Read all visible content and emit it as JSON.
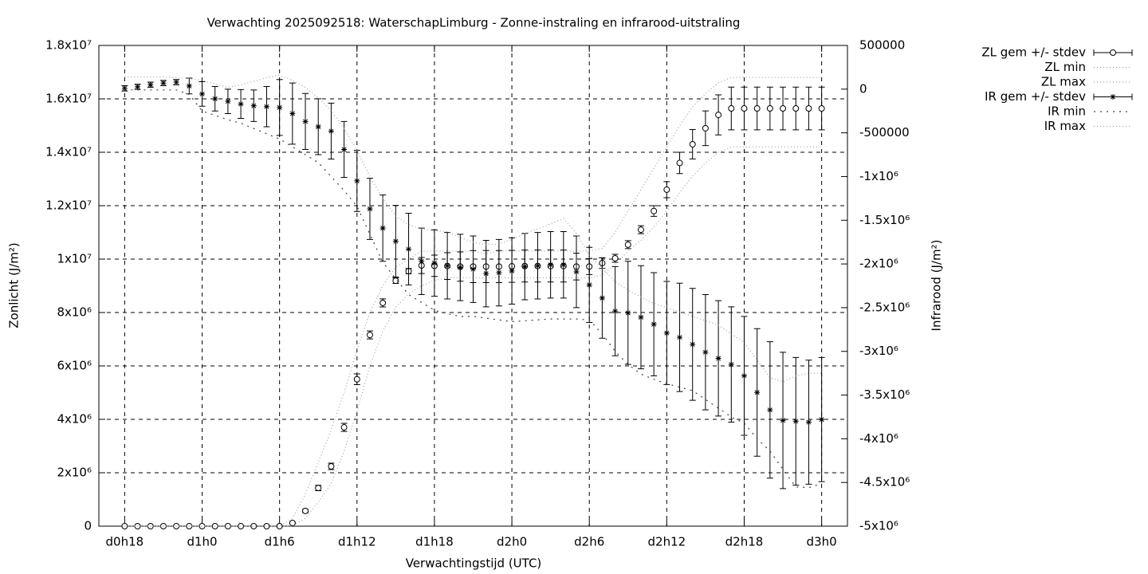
{
  "chart_data": {
    "type": "errorbar-line",
    "title": "Verwachting 2025092518: WaterschapLimburg - Zonne-instraling en infrarood-uitstraling",
    "xlabel": "Verwachtingstijd (UTC)",
    "ylabel": "Zonlicht (J/m²)",
    "y2label": "Infrarood (J/m²)",
    "x": [
      18,
      19,
      20,
      21,
      22,
      23,
      24,
      25,
      26,
      27,
      28,
      29,
      30,
      31,
      32,
      33,
      34,
      35,
      36,
      37,
      38,
      39,
      40,
      41,
      42,
      43,
      44,
      45,
      46,
      47,
      48,
      49,
      50,
      51,
      52,
      53,
      54,
      55,
      56,
      57,
      58,
      59,
      60,
      61,
      62,
      63,
      64,
      65,
      66,
      67,
      68,
      69,
      70,
      71,
      72
    ],
    "xlim": [
      16,
      74
    ],
    "xticks": [
      {
        "value": 18,
        "label": "d0h18"
      },
      {
        "value": 24,
        "label": "d1h0"
      },
      {
        "value": 30,
        "label": "d1h6"
      },
      {
        "value": 36,
        "label": "d1h12"
      },
      {
        "value": 42,
        "label": "d1h18"
      },
      {
        "value": 48,
        "label": "d2h0"
      },
      {
        "value": 54,
        "label": "d2h6"
      },
      {
        "value": 60,
        "label": "d2h12"
      },
      {
        "value": 66,
        "label": "d2h18"
      },
      {
        "value": 72,
        "label": "d3h0"
      }
    ],
    "ylim": [
      0,
      18000000
    ],
    "yticks": [
      0,
      {
        "value": 2000000,
        "label": "2x10⁶"
      },
      {
        "value": 4000000,
        "label": "4x10⁶"
      },
      {
        "value": 6000000,
        "label": "6x10⁶"
      },
      {
        "value": 8000000,
        "label": "8x10⁶"
      },
      {
        "value": 10000000,
        "label": "1x10⁷"
      },
      {
        "value": 12000000,
        "label": "1.2x10⁷"
      },
      {
        "value": 14000000,
        "label": "1.4x10⁷"
      },
      {
        "value": 16000000,
        "label": "1.6x10⁷"
      },
      {
        "value": 18000000,
        "label": "1.8x10⁷"
      }
    ],
    "y2lim": [
      -5000000,
      500000
    ],
    "y2ticks": [
      {
        "value": -5000000,
        "label": "-5x10⁶"
      },
      {
        "value": -4500000,
        "label": "-4.5x10⁶"
      },
      {
        "value": -4000000,
        "label": "-4x10⁶"
      },
      {
        "value": -3500000,
        "label": "-3.5x10⁶"
      },
      {
        "value": -3000000,
        "label": "-3x10⁶"
      },
      {
        "value": -2500000,
        "label": "-2.5x10⁶"
      },
      {
        "value": -2000000,
        "label": "-2x10⁶"
      },
      {
        "value": -1500000,
        "label": "-1.5x10⁶"
      },
      {
        "value": -1000000,
        "label": "-1x10⁶"
      },
      -500000,
      0,
      500000
    ],
    "grid": true,
    "legend": "outside-right-top",
    "series": [
      {
        "name": "ZL gem +/- stdev",
        "axis": "y",
        "style": "errorbars",
        "marker": "circle",
        "color": "#000000",
        "values": [
          0,
          0,
          0,
          0,
          0,
          0,
          0,
          0,
          0,
          0,
          0,
          0,
          0,
          120000,
          570000,
          1430000,
          2240000,
          3700000,
          5500000,
          7160000,
          8360000,
          9190000,
          9550000,
          9760000,
          9750000,
          9740000,
          9720000,
          9720000,
          9720000,
          9720000,
          9730000,
          9740000,
          9740000,
          9740000,
          9740000,
          9720000,
          9720000,
          9850000,
          10030000,
          10540000,
          11100000,
          11800000,
          12600000,
          13600000,
          14300000,
          14900000,
          15400000,
          15640000,
          15640000,
          15640000,
          15640000,
          15640000,
          15640000,
          15640000,
          15640000
        ],
        "errors": [
          0,
          0,
          0,
          0,
          0,
          0,
          0,
          0,
          0,
          0,
          0,
          0,
          0,
          30000,
          60000,
          100000,
          120000,
          150000,
          200000,
          150000,
          150000,
          100000,
          100000,
          300000,
          400000,
          500000,
          550000,
          600000,
          600000,
          600000,
          600000,
          600000,
          600000,
          600000,
          600000,
          500000,
          300000,
          200000,
          150000,
          150000,
          150000,
          200000,
          300000,
          400000,
          550000,
          650000,
          750000,
          800000,
          800000,
          800000,
          800000,
          800000,
          800000,
          800000,
          800000
        ]
      },
      {
        "name": "ZL min",
        "axis": "y",
        "style": "line",
        "color": "#a0a0a0",
        "values": [
          0,
          0,
          0,
          0,
          0,
          0,
          0,
          0,
          0,
          0,
          0,
          0,
          0,
          0,
          300000,
          900000,
          1600000,
          2800000,
          4300000,
          6000000,
          7300000,
          8200000,
          8700000,
          9000000,
          9200000,
          9300000,
          9300000,
          9300000,
          9300000,
          9300000,
          9300000,
          9300000,
          9300000,
          9300000,
          9300000,
          9300000,
          9300000,
          9400000,
          9800000,
          10300000,
          10700000,
          11200000,
          11800000,
          12500000,
          13100000,
          13600000,
          14000000,
          14200000,
          14200000,
          14200000,
          14200000,
          14200000,
          14200000,
          14200000,
          14200000
        ]
      },
      {
        "name": "ZL max",
        "axis": "y",
        "style": "line",
        "color": "#a0a0a0",
        "values": [
          0,
          0,
          0,
          0,
          0,
          0,
          0,
          0,
          0,
          0,
          0,
          0,
          0,
          300000,
          1200000,
          2400000,
          3600000,
          5000000,
          6600000,
          8000000,
          9000000,
          9700000,
          10000000,
          10300000,
          10300000,
          10300000,
          10300000,
          10300000,
          10200000,
          10300000,
          10300000,
          10300000,
          10300000,
          10300000,
          10300000,
          10300000,
          10300000,
          10400000,
          11000000,
          11800000,
          12600000,
          13400000,
          14200000,
          15000000,
          15700000,
          16200000,
          16600000,
          16800000,
          16800000,
          16800000,
          16800000,
          16800000,
          16800000,
          16800000,
          16800000
        ]
      },
      {
        "name": "IR gem +/- stdev",
        "axis": "y2",
        "style": "errorbars",
        "marker": "asterisk",
        "color": "#000000",
        "values": [
          9000,
          27000,
          50000,
          70000,
          80000,
          36000,
          -55000,
          -110000,
          -140000,
          -170000,
          -190000,
          -200000,
          -210000,
          -280000,
          -370000,
          -430000,
          -480000,
          -690000,
          -1050000,
          -1370000,
          -1590000,
          -1740000,
          -1830000,
          -1970000,
          -1990000,
          -2020000,
          -2040000,
          -2060000,
          -2110000,
          -2100000,
          -2080000,
          -2030000,
          -2020000,
          -2010000,
          -2010000,
          -2090000,
          -2240000,
          -2390000,
          -2540000,
          -2560000,
          -2610000,
          -2690000,
          -2790000,
          -2840000,
          -2920000,
          -3010000,
          -3080000,
          -3150000,
          -3280000,
          -3470000,
          -3670000,
          -3790000,
          -3800000,
          -3810000,
          -3780000
        ],
        "errors": [
          30000,
          30000,
          30000,
          30000,
          30000,
          90000,
          140000,
          140000,
          140000,
          165000,
          180000,
          230000,
          320000,
          350000,
          320000,
          320000,
          320000,
          320000,
          350000,
          350000,
          380000,
          410000,
          410000,
          380000,
          380000,
          380000,
          380000,
          380000,
          380000,
          380000,
          380000,
          380000,
          380000,
          380000,
          380000,
          410000,
          430000,
          460000,
          510000,
          590000,
          590000,
          590000,
          590000,
          620000,
          640000,
          660000,
          660000,
          660000,
          680000,
          730000,
          780000,
          780000,
          730000,
          710000,
          710000
        ]
      },
      {
        "name": "IR min",
        "axis": "y2",
        "style": "line",
        "color": "#404040",
        "values": [
          -9000,
          -9000,
          -9000,
          -9000,
          -9000,
          -60000,
          -250000,
          -300000,
          -350000,
          -390000,
          -450000,
          -510000,
          -570000,
          -660000,
          -750000,
          -840000,
          -1000000,
          -1160000,
          -1340000,
          -1660000,
          -1980000,
          -2170000,
          -2350000,
          -2440000,
          -2530000,
          -2570000,
          -2600000,
          -2600000,
          -2620000,
          -2640000,
          -2660000,
          -2650000,
          -2640000,
          -2630000,
          -2630000,
          -2630000,
          -2640000,
          -2800000,
          -3000000,
          -3150000,
          -3260000,
          -3320000,
          -3370000,
          -3410000,
          -3450000,
          -3550000,
          -3650000,
          -3750000,
          -3820000,
          -4000000,
          -4140000,
          -4350000,
          -4550000,
          -4560000,
          -4510000
        ]
      },
      {
        "name": "IR max",
        "axis": "y2",
        "style": "line",
        "color": "#a0a0a0",
        "values": [
          140000,
          140000,
          140000,
          140000,
          130000,
          120000,
          100000,
          60000,
          20000,
          50000,
          90000,
          130000,
          160000,
          100000,
          20000,
          -100000,
          -250000,
          -450000,
          -700000,
          -1000000,
          -1250000,
          -1450000,
          -1550000,
          -1600000,
          -1620000,
          -1630000,
          -1700000,
          -1750000,
          -1780000,
          -1770000,
          -1720000,
          -1650000,
          -1600000,
          -1540000,
          -1480000,
          -1650000,
          -1900000,
          -2050000,
          -2200000,
          -2300000,
          -2380000,
          -2450000,
          -2500000,
          -2550000,
          -2600000,
          -2650000,
          -2700000,
          -2800000,
          -2900000,
          -3100000,
          -3300000,
          -3350000,
          -3280000,
          -3250000,
          -3250000
        ]
      }
    ]
  }
}
